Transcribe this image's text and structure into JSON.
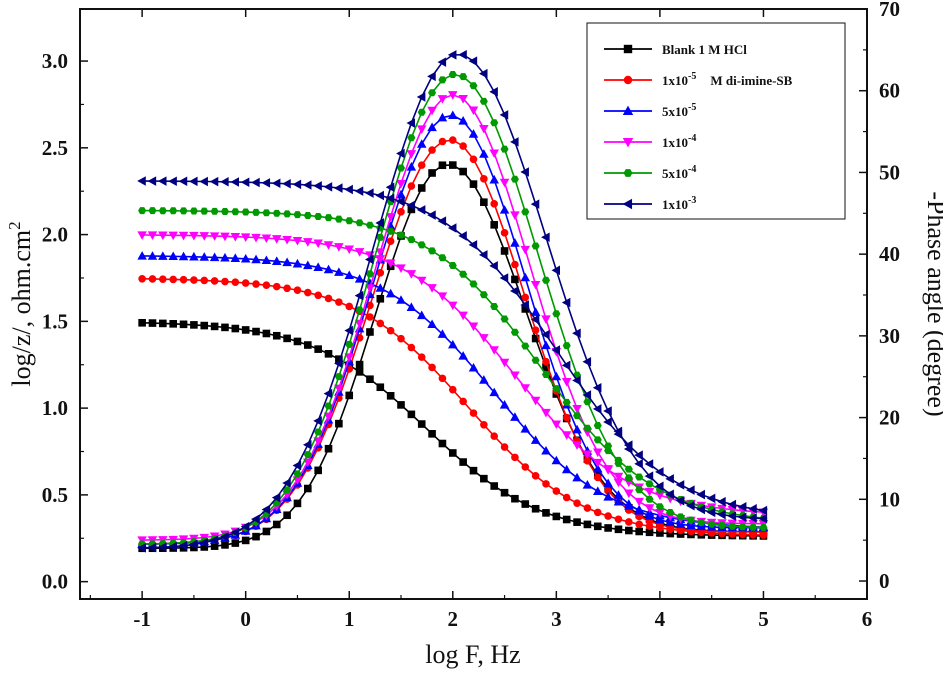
{
  "chart_data": {
    "type": "line",
    "title": "",
    "xlabel": "log F, Hz",
    "ylabel_left": "log/z/, ohm.cm",
    "ylabel_left_sup": "2",
    "ylabel_right": "-Phase angle (degree)",
    "xlim": [
      -1.6,
      6
    ],
    "ylim_left": [
      -0.1,
      3.3
    ],
    "ylim_right": [
      -2.2,
      70
    ],
    "x_ticks": [
      -1,
      0,
      1,
      2,
      3,
      4,
      5,
      6
    ],
    "x_tick_labels": [
      "-1",
      "0",
      "1",
      "2",
      "3",
      "4",
      "5",
      "6"
    ],
    "y_left_ticks": [
      0.0,
      0.5,
      1.0,
      1.5,
      2.0,
      2.5,
      3.0
    ],
    "y_left_tick_labels": [
      "0.0",
      "0.5",
      "1.0",
      "1.5",
      "2.0",
      "2.5",
      "3.0"
    ],
    "y_right_ticks": [
      0,
      10,
      20,
      30,
      40,
      50,
      60,
      70
    ],
    "y_right_tick_labels": [
      "0",
      "10",
      "20",
      "30",
      "40",
      "50",
      "60",
      "70"
    ],
    "legend_position": "top-right",
    "x_range": [
      -1,
      5
    ],
    "points_per_decade": 10,
    "series": [
      {
        "name": "Blank 1 M HCl",
        "legend_main": "Blank   1 M HCl",
        "legend_sup": "",
        "legend_suffix": "",
        "color": "#000000",
        "marker": "square",
        "impedance": {
          "high": 1.5,
          "low": 0.26,
          "center": 1.75,
          "width": 0.55
        },
        "phase": {
          "peak_x": 1.95,
          "peak": 51,
          "base_low": 4,
          "base_high": 6,
          "width_left": 0.7,
          "width_right": 0.75
        }
      },
      {
        "name": "1x10-5 M di-imine-SB",
        "legend_main": "1x10",
        "legend_sup": "-5",
        "legend_suffix": "M di-imine-SB",
        "color": "#ff0000",
        "marker": "circle",
        "impedance": {
          "high": 1.75,
          "low": 0.26,
          "center": 2.15,
          "width": 0.55
        },
        "phase": {
          "peak_x": 1.97,
          "peak": 54,
          "base_low": 4.5,
          "base_high": 6,
          "width_left": 0.75,
          "width_right": 0.72
        }
      },
      {
        "name": "5x10-5",
        "legend_main": "5x10",
        "legend_sup": "-5",
        "legend_suffix": "",
        "color": "#0000ff",
        "marker": "triangle-up",
        "impedance": {
          "high": 1.88,
          "low": 0.3,
          "center": 2.4,
          "width": 0.55
        },
        "phase": {
          "peak_x": 1.98,
          "peak": 57,
          "base_low": 4.5,
          "base_high": 6.5,
          "width_left": 0.75,
          "width_right": 0.72
        }
      },
      {
        "name": "1x10-4",
        "legend_main": "1x10",
        "legend_sup": "-4",
        "legend_suffix": "",
        "color": "#ff00ff",
        "marker": "triangle-down",
        "impedance": {
          "high": 2.0,
          "low": 0.38,
          "center": 2.6,
          "width": 0.55
        },
        "phase": {
          "peak_x": 2.0,
          "peak": 59.5,
          "base_low": 5,
          "base_high": 7,
          "width_left": 0.75,
          "width_right": 0.74
        }
      },
      {
        "name": "5x10-4",
        "legend_main": "5x10",
        "legend_sup": "-4",
        "legend_suffix": "",
        "color": "#009900",
        "marker": "hexagon",
        "impedance": {
          "high": 2.14,
          "low": 0.33,
          "center": 2.85,
          "width": 0.55
        },
        "phase": {
          "peak_x": 2.02,
          "peak": 62,
          "base_low": 4.5,
          "base_high": 6.5,
          "width_left": 0.78,
          "width_right": 0.8
        }
      },
      {
        "name": "1x10-3",
        "legend_main": "1x10",
        "legend_sup": "-3",
        "legend_suffix": "",
        "color": "#000080",
        "marker": "triangle-left",
        "impedance": {
          "high": 2.31,
          "low": 0.36,
          "center": 3.0,
          "width": 0.55
        },
        "phase": {
          "peak_x": 2.05,
          "peak": 64.5,
          "base_low": 4,
          "base_high": 7.5,
          "width_left": 0.82,
          "width_right": 0.85
        }
      }
    ]
  }
}
